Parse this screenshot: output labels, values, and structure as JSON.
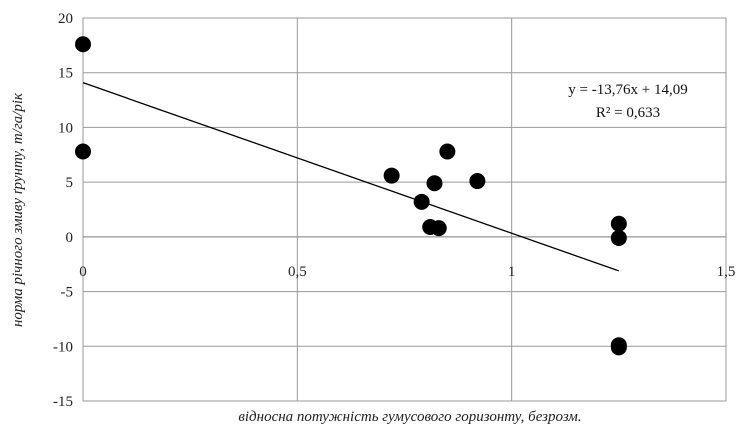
{
  "chart_data": {
    "type": "scatter",
    "xlabel": "відносна потужність гумусового горизонту, безрозм.",
    "ylabel": "норма річного змиву ґрунту, т/га/рік",
    "xlim": [
      0,
      1.5
    ],
    "ylim": [
      -15,
      20
    ],
    "x_ticks": [
      "0",
      "0,5",
      "1",
      "1,5"
    ],
    "x_tick_values": [
      0,
      0.5,
      1,
      1.5
    ],
    "y_ticks": [
      "20",
      "15",
      "10",
      "5",
      "0",
      "-5",
      "-10",
      "-15"
    ],
    "y_tick_values": [
      20,
      15,
      10,
      5,
      0,
      -5,
      -10,
      -15
    ],
    "grid": true,
    "points": [
      {
        "x": 0.0,
        "y": 17.6
      },
      {
        "x": 0.0,
        "y": 7.8
      },
      {
        "x": 0.72,
        "y": 5.6
      },
      {
        "x": 0.79,
        "y": 3.2
      },
      {
        "x": 0.81,
        "y": 0.9
      },
      {
        "x": 0.82,
        "y": 4.9
      },
      {
        "x": 0.83,
        "y": 0.8
      },
      {
        "x": 0.85,
        "y": 7.8
      },
      {
        "x": 0.92,
        "y": 5.1
      },
      {
        "x": 1.25,
        "y": 1.2
      },
      {
        "x": 1.25,
        "y": -0.1
      },
      {
        "x": 1.25,
        "y": -9.9
      },
      {
        "x": 1.25,
        "y": -10.1
      }
    ],
    "trendline": {
      "slope": -13.76,
      "intercept": 14.09,
      "x_range": [
        0,
        1.25
      ],
      "equation": "y = -13,76x + 14,09",
      "r2": "R² = 0,633"
    }
  }
}
